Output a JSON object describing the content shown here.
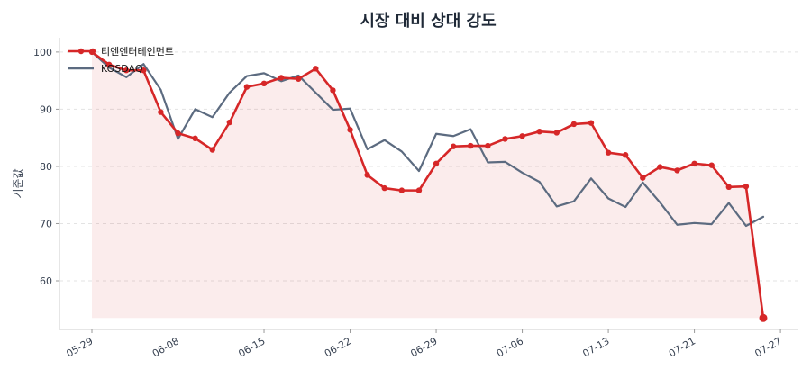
{
  "chart_data": {
    "type": "line",
    "title": "시장 대비 상대 강도",
    "xlabel": "",
    "ylabel": "기준값",
    "ylim": [
      51.5,
      102.5
    ],
    "y_ticks": [
      60,
      70,
      80,
      90,
      100
    ],
    "x_tick_labels": [
      "05-29",
      "06-08",
      "06-15",
      "06-22",
      "06-29",
      "07-06",
      "07-13",
      "07-21",
      "07-27"
    ],
    "x_tick_index": [
      0,
      5,
      10,
      15,
      20,
      25,
      30,
      35,
      40
    ],
    "grid": "y-dashed",
    "legend_position": "top-left",
    "series": [
      {
        "name": "티엔엔터테인먼트",
        "color": "#d62728",
        "markers": true,
        "fill_area": true,
        "values": [
          100.0,
          97.8,
          96.8,
          96.8,
          89.5,
          85.8,
          84.9,
          82.9,
          87.7,
          93.9,
          94.5,
          95.5,
          95.3,
          97.1,
          93.3,
          86.4,
          78.5,
          76.2,
          75.8,
          75.8,
          80.5,
          83.5,
          83.6,
          83.6,
          84.8,
          85.3,
          86.1,
          85.9,
          87.4,
          87.6,
          82.4,
          82.0,
          78.0,
          79.9,
          79.3,
          80.5,
          80.2,
          76.4,
          76.5,
          53.5
        ]
      },
      {
        "name": "KOSDAQ",
        "color": "#5c6b80",
        "markers": false,
        "fill_area": false,
        "values": [
          100.0,
          97.3,
          95.6,
          97.9,
          93.4,
          84.8,
          90.0,
          88.6,
          92.9,
          95.8,
          96.3,
          94.9,
          95.9,
          92.9,
          89.9,
          90.1,
          83.0,
          84.6,
          82.6,
          79.2,
          85.7,
          85.3,
          86.5,
          80.7,
          80.8,
          78.9,
          77.3,
          73.0,
          73.9,
          77.9,
          74.4,
          72.9,
          77.2,
          73.7,
          69.8,
          70.1,
          69.9,
          73.6,
          69.6,
          71.2
        ]
      }
    ]
  }
}
